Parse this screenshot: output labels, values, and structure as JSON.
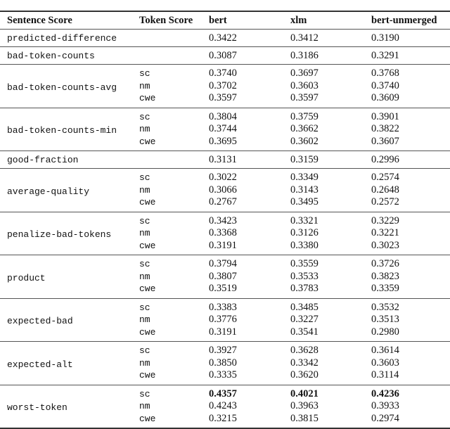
{
  "table": {
    "headers": [
      "Sentence Score",
      "Token Score",
      "bert",
      "xlm",
      "bert-unmerged"
    ],
    "groups": [
      {
        "name": "predicted-difference",
        "rows": [
          {
            "token": "",
            "values": [
              "0.3422",
              "0.3412",
              "0.3190"
            ]
          }
        ]
      },
      {
        "name": "bad-token-counts",
        "rows": [
          {
            "token": "",
            "values": [
              "0.3087",
              "0.3186",
              "0.3291"
            ]
          }
        ]
      },
      {
        "name": "bad-token-counts-avg",
        "rows": [
          {
            "token": "sc",
            "values": [
              "0.3740",
              "0.3697",
              "0.3768"
            ]
          },
          {
            "token": "nm",
            "values": [
              "0.3702",
              "0.3603",
              "0.3740"
            ]
          },
          {
            "token": "cwe",
            "values": [
              "0.3597",
              "0.3597",
              "0.3609"
            ]
          }
        ]
      },
      {
        "name": "bad-token-counts-min",
        "rows": [
          {
            "token": "sc",
            "values": [
              "0.3804",
              "0.3759",
              "0.3901"
            ]
          },
          {
            "token": "nm",
            "values": [
              "0.3744",
              "0.3662",
              "0.3822"
            ]
          },
          {
            "token": "cwe",
            "values": [
              "0.3695",
              "0.3602",
              "0.3607"
            ]
          }
        ]
      },
      {
        "name": "good-fraction",
        "rows": [
          {
            "token": "",
            "values": [
              "0.3131",
              "0.3159",
              "0.2996"
            ]
          }
        ]
      },
      {
        "name": "average-quality",
        "rows": [
          {
            "token": "sc",
            "values": [
              "0.3022",
              "0.3349",
              "0.2574"
            ]
          },
          {
            "token": "nm",
            "values": [
              "0.3066",
              "0.3143",
              "0.2648"
            ]
          },
          {
            "token": "cwe",
            "values": [
              "0.2767",
              "0.3495",
              "0.2572"
            ]
          }
        ]
      },
      {
        "name": "penalize-bad-tokens",
        "rows": [
          {
            "token": "sc",
            "values": [
              "0.3423",
              "0.3321",
              "0.3229"
            ]
          },
          {
            "token": "nm",
            "values": [
              "0.3368",
              "0.3126",
              "0.3221"
            ]
          },
          {
            "token": "cwe",
            "values": [
              "0.3191",
              "0.3380",
              "0.3023"
            ]
          }
        ]
      },
      {
        "name": "product",
        "rows": [
          {
            "token": "sc",
            "values": [
              "0.3794",
              "0.3559",
              "0.3726"
            ]
          },
          {
            "token": "nm",
            "values": [
              "0.3807",
              "0.3533",
              "0.3823"
            ]
          },
          {
            "token": "cwe",
            "values": [
              "0.3519",
              "0.3783",
              "0.3359"
            ]
          }
        ]
      },
      {
        "name": "expected-bad",
        "rows": [
          {
            "token": "sc",
            "values": [
              "0.3383",
              "0.3485",
              "0.3532"
            ]
          },
          {
            "token": "nm",
            "values": [
              "0.3776",
              "0.3227",
              "0.3513"
            ]
          },
          {
            "token": "cwe",
            "values": [
              "0.3191",
              "0.3541",
              "0.2980"
            ]
          }
        ]
      },
      {
        "name": "expected-alt",
        "rows": [
          {
            "token": "sc",
            "values": [
              "0.3927",
              "0.3628",
              "0.3614"
            ]
          },
          {
            "token": "nm",
            "values": [
              "0.3850",
              "0.3342",
              "0.3603"
            ]
          },
          {
            "token": "cwe",
            "values": [
              "0.3335",
              "0.3620",
              "0.3114"
            ]
          }
        ]
      },
      {
        "name": "worst-token",
        "rows": [
          {
            "token": "sc",
            "values": [
              "0.4357",
              "0.4021",
              "0.4236"
            ],
            "bold": true
          },
          {
            "token": "nm",
            "values": [
              "0.4243",
              "0.3963",
              "0.3933"
            ]
          },
          {
            "token": "cwe",
            "values": [
              "0.3215",
              "0.3815",
              "0.2974"
            ]
          }
        ]
      }
    ]
  }
}
